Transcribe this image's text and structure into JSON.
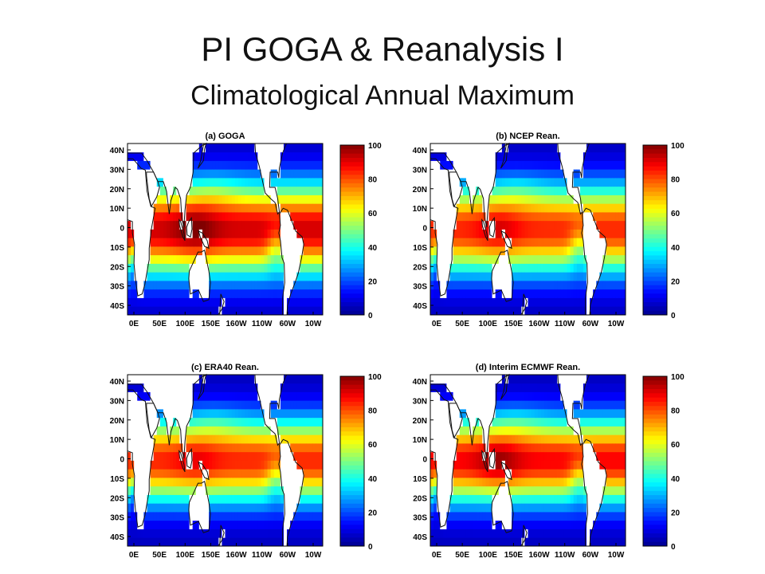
{
  "title": "PI GOGA & Reanalysis I",
  "subtitle": "Climatological Annual Maximum",
  "colors": {
    "land": "#ffffff",
    "colormap": [
      "#00008f",
      "#0000ff",
      "#0080ff",
      "#00ffff",
      "#80ff80",
      "#ffff00",
      "#ff8000",
      "#ff0000",
      "#800000"
    ]
  },
  "chart_data": [
    {
      "type": "heatmap",
      "title": "(a) GOGA",
      "xticks": [
        "0E",
        "50E",
        "100E",
        "150E",
        "160W",
        "110W",
        "60W",
        "10W"
      ],
      "yticks": [
        "40N",
        "30N",
        "20N",
        "10N",
        "0",
        "10S",
        "20S",
        "30S",
        "40S"
      ],
      "ylim": [
        -45,
        45
      ],
      "colorbar": {
        "ticks": [
          "100",
          "80",
          "60",
          "40",
          "20",
          "0"
        ],
        "range": [
          0,
          100
        ]
      },
      "field": {
        "equator_peak": 88,
        "tropical_width": 24,
        "warm_pool_boost": 10
      }
    },
    {
      "type": "heatmap",
      "title": "(b) NCEP Rean.",
      "xticks": [
        "0E",
        "50E",
        "100E",
        "150E",
        "160W",
        "110W",
        "60W",
        "10W"
      ],
      "yticks": [
        "40N",
        "30N",
        "20N",
        "10N",
        "0",
        "10S",
        "20S",
        "30S",
        "40S"
      ],
      "ylim": [
        -45,
        45
      ],
      "colorbar": {
        "ticks": [
          "100",
          "80",
          "60",
          "40",
          "20",
          "0"
        ],
        "range": [
          0,
          100
        ]
      },
      "field": {
        "equator_peak": 80,
        "tropical_width": 23,
        "warm_pool_boost": 8
      }
    },
    {
      "type": "heatmap",
      "title": "(c) ERA40 Rean.",
      "xticks": [
        "0E",
        "50E",
        "100E",
        "150E",
        "160W",
        "110W",
        "60W",
        "10W"
      ],
      "yticks": [
        "40N",
        "30N",
        "20N",
        "10N",
        "0",
        "10S",
        "20S",
        "30S",
        "40S"
      ],
      "ylim": [
        -45,
        45
      ],
      "colorbar": {
        "ticks": [
          "100",
          "80",
          "60",
          "40",
          "20",
          "0"
        ],
        "range": [
          0,
          100
        ]
      },
      "field": {
        "equator_peak": 80,
        "tropical_width": 22,
        "warm_pool_boost": 6
      }
    },
    {
      "type": "heatmap",
      "title": "(d) Interim ECMWF Rean.",
      "xticks": [
        "0E",
        "50E",
        "100E",
        "150E",
        "160W",
        "110W",
        "60W",
        "10W"
      ],
      "yticks": [
        "40N",
        "30N",
        "20N",
        "10N",
        "0",
        "10S",
        "20S",
        "30S",
        "40S"
      ],
      "ylim": [
        -45,
        45
      ],
      "colorbar": {
        "ticks": [
          "100",
          "80",
          "60",
          "40",
          "20",
          "0"
        ],
        "range": [
          0,
          100
        ]
      },
      "field": {
        "equator_peak": 84,
        "tropical_width": 22,
        "warm_pool_boost": 10
      }
    }
  ]
}
